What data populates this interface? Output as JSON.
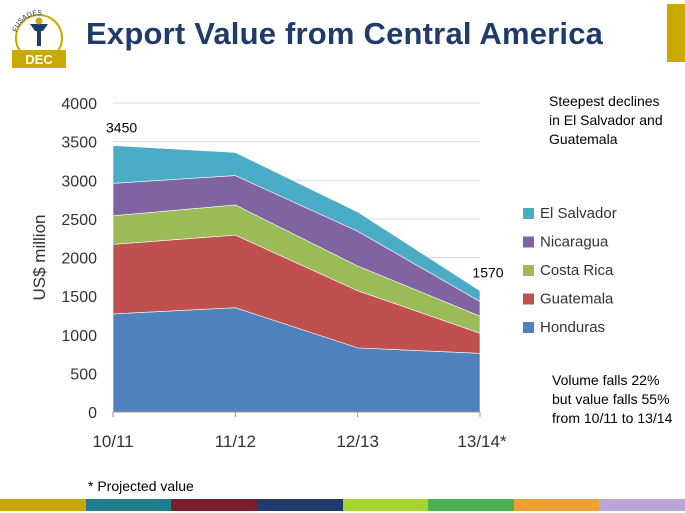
{
  "header": {
    "title": "Export Value from Central America",
    "logo_text": "DEC",
    "logo_arc_text": "FUSADES"
  },
  "notes": {
    "top": "Steepest declines in El Salvador and Guatemala",
    "bottom": "Volume falls 22% but value falls 55% from 10/11 to 13/14",
    "footnote": "* Projected value"
  },
  "colors": {
    "title": "#1f3a6b",
    "logo": "#c9a800",
    "stripe": [
      "#c9a800",
      "#1f7f8c",
      "#7a1f2b",
      "#1f3a6b",
      "#a5d62f",
      "#4caf50",
      "#f0a030",
      "#b8a6d9"
    ]
  },
  "chart_data": {
    "type": "area",
    "stacked": true,
    "categories": [
      "10/11",
      "11/12",
      "12/13",
      "13/14*"
    ],
    "ylabel": "US$ million",
    "ylim": [
      0,
      4000
    ],
    "yticks": [
      0,
      500,
      1000,
      1500,
      2000,
      2500,
      3000,
      3500,
      4000
    ],
    "gridlines": true,
    "legend_position": "right",
    "series": [
      {
        "name": "Honduras",
        "color": "#4f81bd",
        "values": [
          1270,
          1350,
          830,
          760
        ]
      },
      {
        "name": "Guatemala",
        "color": "#c0504d",
        "values": [
          900,
          940,
          740,
          260
        ]
      },
      {
        "name": "Costa Rica",
        "color": "#9bbb59",
        "values": [
          370,
          390,
          320,
          220
        ]
      },
      {
        "name": "Nicaragua",
        "color": "#8064a2",
        "values": [
          420,
          380,
          450,
          190
        ]
      },
      {
        "name": "El Salvador",
        "color": "#4bacc6",
        "values": [
          490,
          300,
          250,
          140
        ]
      }
    ],
    "annotations": [
      {
        "category": "10/11",
        "text": "3450"
      },
      {
        "category": "13/14*",
        "text": "1570"
      }
    ]
  }
}
